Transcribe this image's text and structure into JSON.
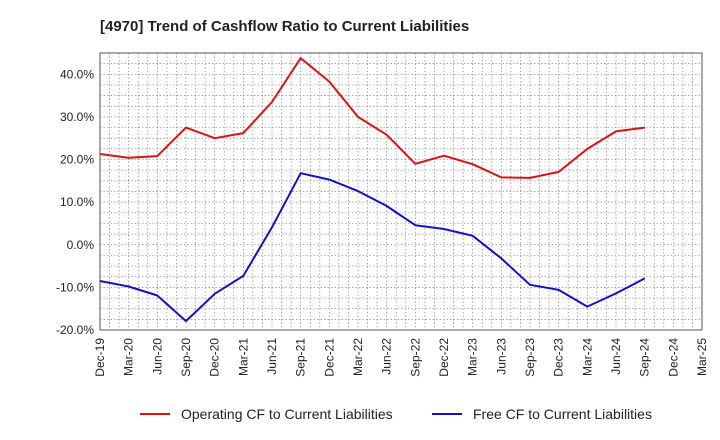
{
  "chart_data": {
    "type": "line",
    "title": "[4970]  Trend of Cashflow Ratio to Current Liabilities",
    "xlabel": "",
    "ylabel": "",
    "categories": [
      "Dec-19",
      "Mar-20",
      "Jun-20",
      "Sep-20",
      "Dec-20",
      "Mar-21",
      "Jun-21",
      "Sep-21",
      "Dec-21",
      "Mar-22",
      "Jun-22",
      "Sep-22",
      "Dec-22",
      "Mar-23",
      "Jun-23",
      "Sep-23",
      "Dec-23",
      "Mar-24",
      "Jun-24",
      "Sep-24",
      "Dec-24",
      "Mar-25"
    ],
    "ylim": [
      -20,
      45
    ],
    "yticks": [
      -20,
      -10,
      0,
      10,
      20,
      30,
      40
    ],
    "ytick_labels": [
      "-20.0%",
      "-10.0%",
      "0.0%",
      "10.0%",
      "20.0%",
      "30.0%",
      "40.0%"
    ],
    "grid": true,
    "legend_position": "bottom",
    "series": [
      {
        "name": "Operating CF to Current Liabilities",
        "color": "#dd1111",
        "values": [
          21.3,
          20.4,
          20.8,
          27.5,
          25.0,
          26.2,
          33.5,
          43.8,
          38.3,
          30.0,
          25.8,
          19.0,
          20.9,
          18.9,
          15.8,
          15.7,
          17.1,
          22.5,
          26.6,
          27.5,
          null,
          null
        ]
      },
      {
        "name": "Free CF to Current Liabilities",
        "color": "#1111cc",
        "values": [
          -8.5,
          -9.8,
          -11.9,
          -17.9,
          -11.5,
          -7.3,
          4.1,
          16.8,
          15.3,
          12.6,
          9.1,
          4.6,
          3.7,
          2.1,
          -3.2,
          -9.4,
          -10.6,
          -14.5,
          -11.4,
          -7.9,
          null,
          null
        ]
      }
    ]
  }
}
